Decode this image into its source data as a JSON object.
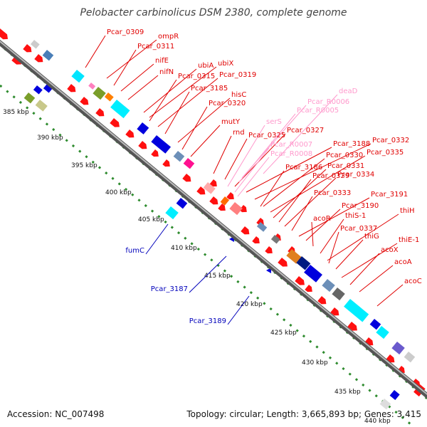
{
  "title": "Pelobacter carbinolicus DSM 2380, complete genome",
  "accession": "Accession: NC_007498",
  "topology": "Topology: circular; Length: 3,665,893 bp; Genes: 3,415",
  "colors": {
    "forward_label": "#e00000",
    "reverse_label": "#0000bb",
    "rna_label": "#ff99cc",
    "backbone": "#888888",
    "tick": "#2e8b2e"
  },
  "kbp_ticks": [
    "385 kbp",
    "390 kbp",
    "395 kbp",
    "400 kbp",
    "405 kbp",
    "410 kbp",
    "415 kbp",
    "420 kbp",
    "425 kbp",
    "430 kbp",
    "435 kbp",
    "440 kbp"
  ],
  "forward_labels": [
    "Pcar_0309",
    "ompR",
    "Pcar_0311",
    "nifE",
    "nifN",
    "ubiA",
    "ubiX",
    "Pcar_0315",
    "Pcar_0319",
    "Pcar_3185",
    "hisC",
    "Pcar_0320",
    "mutY",
    "rnd",
    "Pcar_0325",
    "Pcar_0327",
    "Pcar_3188",
    "Pcar_0332",
    "Pcar_0330",
    "Pcar_0335",
    "Pcar_3186",
    "Pcar_0331",
    "Pcar_0329",
    "Pcar_0334",
    "Pcar_0333",
    "Pcar_3191",
    "Pcar_3190",
    "acoR",
    "thiS-1",
    "thiH",
    "Pcar_0337",
    "thiG",
    "thiE-1",
    "acoX",
    "acoA",
    "acoC"
  ],
  "rna_labels": [
    "deaD",
    "Pcar_R0006",
    "Pcar_R0005",
    "serS",
    "Pcar_R0007",
    "Pcar_R0008"
  ],
  "reverse_labels": [
    "fumC",
    "Pcar_3187",
    "Pcar_3189"
  ]
}
